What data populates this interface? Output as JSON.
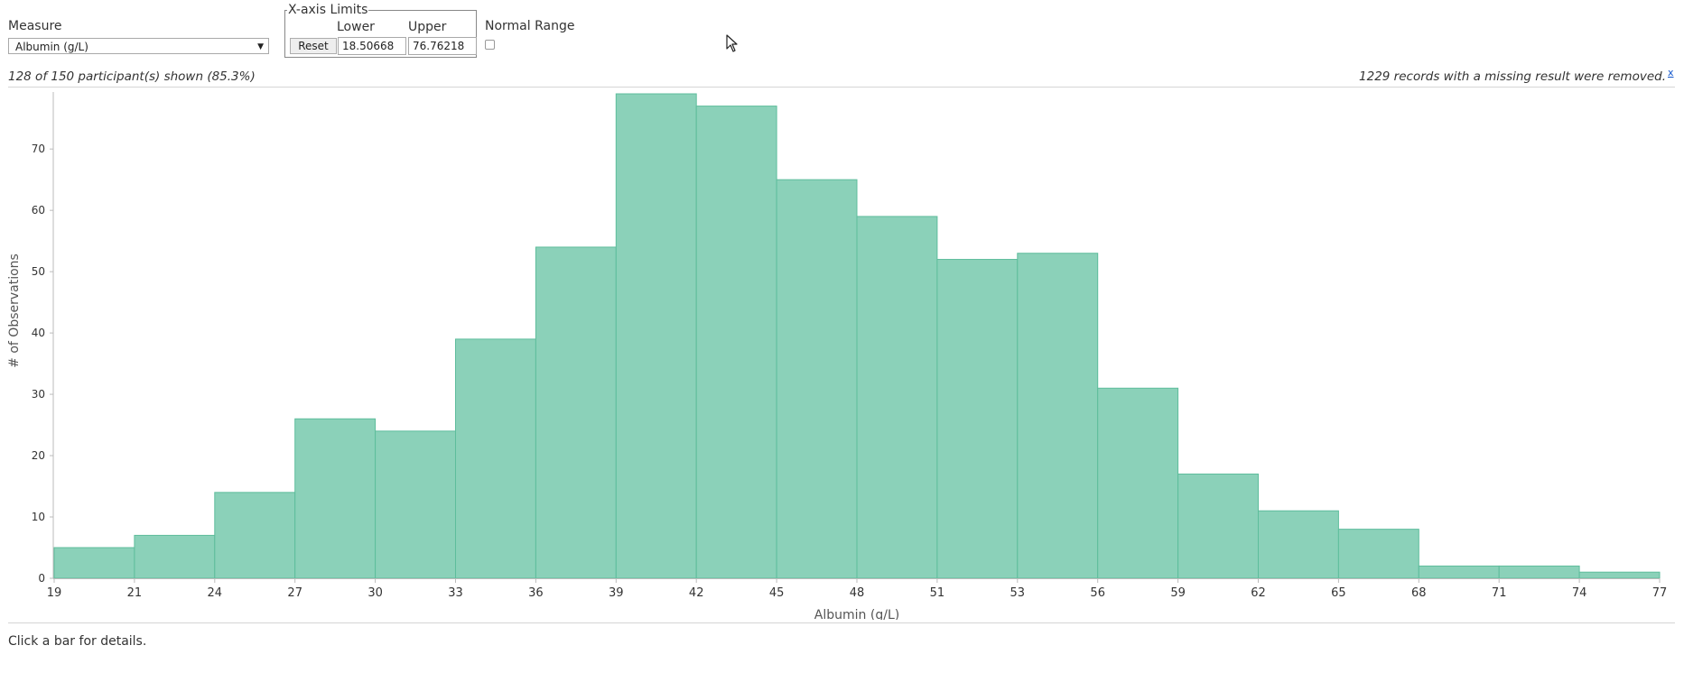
{
  "controls": {
    "measure_label": "Measure",
    "measure_value": "Albumin (g/L)",
    "axis_limits_label": "X-axis Limits",
    "lower_label": "Lower",
    "upper_label": "Upper",
    "reset_label": "Reset",
    "lower_value": "18.50668",
    "upper_value": "76.76218",
    "normal_range_label": "Normal Range",
    "normal_range_checked": false
  },
  "summary": {
    "participants_text": "128 of 150 participant(s) shown (85.3%)",
    "missing_text": "1229 records with a missing result were removed.",
    "close_label": "x"
  },
  "footer_text": "Click a bar for details.",
  "colors": {
    "bar_fill": "#8bd1b9",
    "bar_stroke": "#5ebd9c",
    "axis": "#bbbbbb",
    "text": "#333333"
  },
  "chart_data": {
    "type": "bar",
    "title": "",
    "xlabel": "Albumin (g/L)",
    "ylabel": "# of Observations",
    "x_tick_labels": [
      "19",
      "21",
      "24",
      "27",
      "30",
      "33",
      "36",
      "39",
      "42",
      "45",
      "48",
      "51",
      "53",
      "56",
      "59",
      "62",
      "65",
      "68",
      "71",
      "74",
      "77"
    ],
    "y_ticks": [
      0,
      10,
      20,
      30,
      40,
      50,
      60,
      70
    ],
    "ylim": [
      0,
      79
    ],
    "values": [
      5,
      7,
      14,
      26,
      24,
      39,
      54,
      79,
      77,
      65,
      59,
      52,
      53,
      31,
      17,
      11,
      8,
      2,
      2,
      1
    ],
    "grid": false,
    "legend": "none"
  }
}
